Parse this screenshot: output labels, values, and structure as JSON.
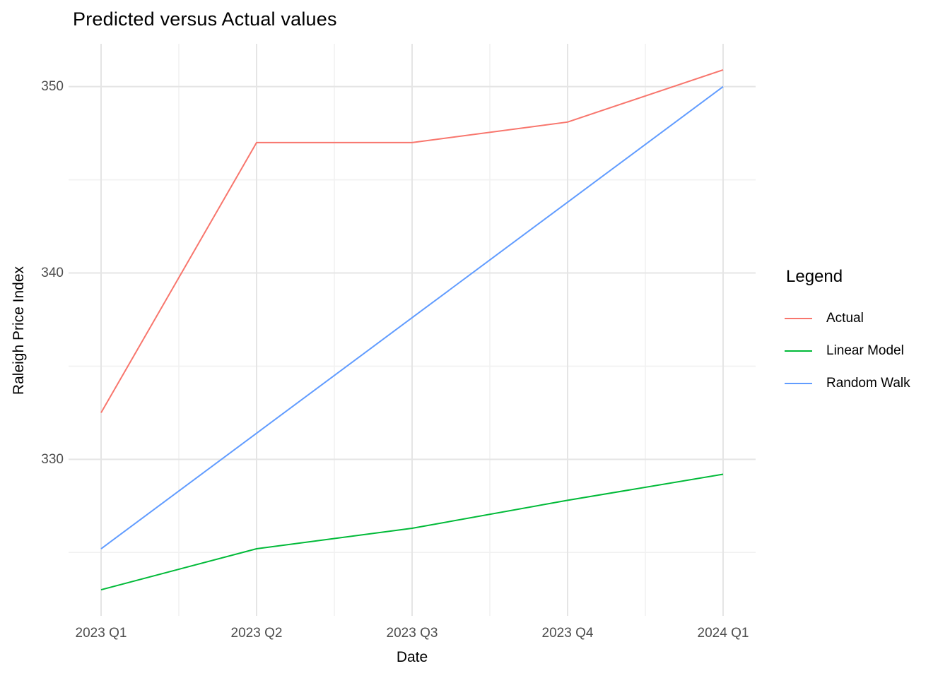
{
  "chart": {
    "title": "Predicted versus Actual values",
    "xlabel": "Date",
    "ylabel": "Raleigh Price Index"
  },
  "legend": {
    "title": "Legend"
  },
  "chart_data": {
    "type": "line",
    "title": "Predicted versus Actual values",
    "xlabel": "Date",
    "ylabel": "Raleigh Price Index",
    "categories": [
      "2023 Q1",
      "2023 Q2",
      "2023 Q3",
      "2023 Q4",
      "2024 Q1"
    ],
    "series": [
      {
        "name": "Actual",
        "color": "#F8766D",
        "values": [
          332.5,
          347.0,
          347.0,
          348.1,
          350.9
        ]
      },
      {
        "name": "Linear Model",
        "color": "#00BA38",
        "values": [
          323.0,
          325.2,
          326.3,
          327.8,
          329.2
        ]
      },
      {
        "name": "Random Walk",
        "color": "#619CFF",
        "values": [
          325.2,
          331.4,
          337.6,
          343.8,
          350.0
        ]
      }
    ],
    "y_ticks": [
      330,
      340,
      350
    ],
    "ylim": [
      321.6,
      352.3
    ],
    "grid": true,
    "grid_major_color": "#E5E5E5",
    "grid_minor_color": "#F1F1F1",
    "background": "#FFFFFF",
    "legend_position": "right"
  }
}
